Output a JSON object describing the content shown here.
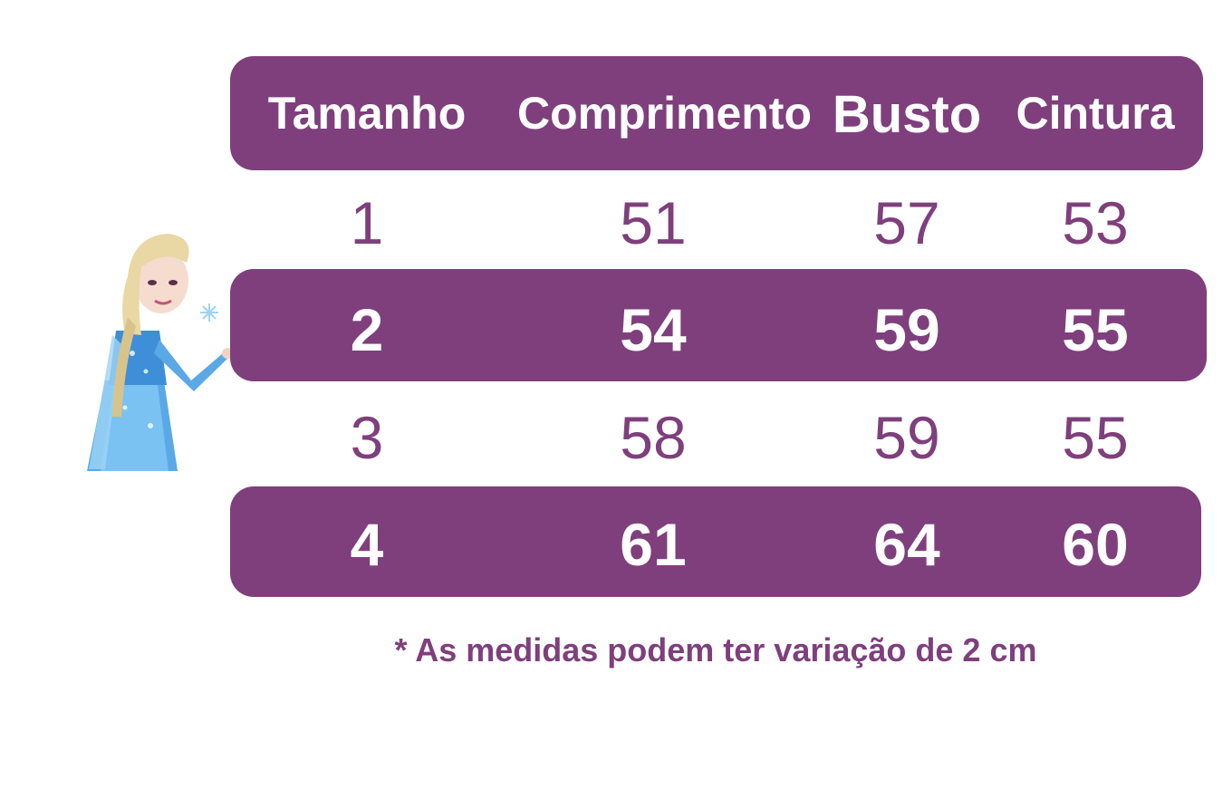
{
  "table": {
    "headers": [
      "Tamanho",
      "Comprimento",
      "Busto",
      "Cintura"
    ],
    "rows": [
      [
        "1",
        "51",
        "57",
        "53"
      ],
      [
        "2",
        "54",
        "59",
        "55"
      ],
      [
        "3",
        "58",
        "59",
        "55"
      ],
      [
        "4",
        "61",
        "64",
        "60"
      ]
    ]
  },
  "note": "* As medidas podem ter variação de 2 cm",
  "colors": {
    "accent": "#7f3f7d",
    "text_light": "#ffffff"
  },
  "decoration": {
    "figure": "princess-illustration"
  }
}
